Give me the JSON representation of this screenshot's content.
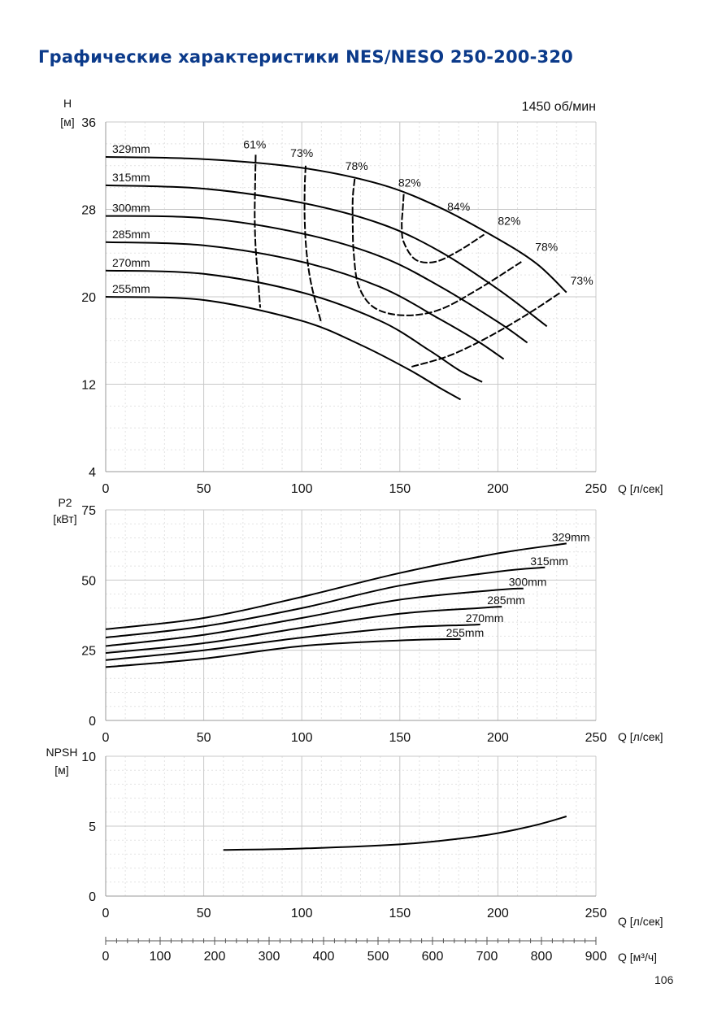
{
  "page": {
    "title": "Графические характеристики NES/NESO 250-200-320",
    "page_number": "106"
  },
  "colors": {
    "title": "#0b3a8a",
    "curve": "#000000",
    "grid": "#c8c8c8",
    "subgrid": "#e2e2e2"
  },
  "chart_data": [
    {
      "type": "line",
      "id": "head",
      "ylabel": [
        "H",
        "[м]"
      ],
      "speed_label": "1450 об/мин",
      "xlabel": "Q [л/сек]",
      "xlim": [
        0,
        250
      ],
      "ylim": [
        4,
        36
      ],
      "x_ticks": [
        0,
        50,
        100,
        150,
        200,
        250
      ],
      "y_ticks": [
        4,
        12,
        20,
        28,
        36
      ],
      "series": [
        {
          "name": "329mm",
          "points": [
            [
              0,
              32.8
            ],
            [
              50,
              32.6
            ],
            [
              100,
              31.8
            ],
            [
              140,
              30.3
            ],
            [
              170,
              28.2
            ],
            [
              200,
              25.3
            ],
            [
              220,
              23.0
            ],
            [
              235,
              20.4
            ]
          ]
        },
        {
          "name": "315mm",
          "points": [
            [
              0,
              30.2
            ],
            [
              50,
              29.9
            ],
            [
              100,
              28.6
            ],
            [
              140,
              26.7
            ],
            [
              170,
              24.2
            ],
            [
              200,
              20.7
            ],
            [
              225,
              17.3
            ]
          ]
        },
        {
          "name": "300mm",
          "points": [
            [
              0,
              27.4
            ],
            [
              50,
              27.2
            ],
            [
              100,
              25.8
            ],
            [
              140,
              23.7
            ],
            [
              170,
              21.0
            ],
            [
              200,
              17.7
            ],
            [
              215,
              15.8
            ]
          ]
        },
        {
          "name": "285mm",
          "points": [
            [
              0,
              25.0
            ],
            [
              50,
              24.7
            ],
            [
              100,
              23.2
            ],
            [
              140,
              20.9
            ],
            [
              170,
              18.0
            ],
            [
              190,
              15.9
            ],
            [
              203,
              14.3
            ]
          ]
        },
        {
          "name": "270mm",
          "points": [
            [
              0,
              22.4
            ],
            [
              50,
              22.1
            ],
            [
              100,
              20.4
            ],
            [
              140,
              17.8
            ],
            [
              165,
              15.1
            ],
            [
              180,
              13.3
            ],
            [
              192,
              12.2
            ]
          ]
        },
        {
          "name": "255mm",
          "points": [
            [
              0,
              20.0
            ],
            [
              50,
              19.7
            ],
            [
              100,
              17.8
            ],
            [
              130,
              15.6
            ],
            [
              155,
              13.3
            ],
            [
              170,
              11.7
            ],
            [
              181,
              10.6
            ]
          ]
        }
      ],
      "efficiency_curves": [
        {
          "name": "61%",
          "points": [
            [
              76.5,
              33.0
            ],
            [
              76.2,
              30.2
            ],
            [
              76.0,
              27.4
            ],
            [
              76.4,
              24.7
            ],
            [
              77.5,
              22.1
            ],
            [
              78.8,
              19.0
            ]
          ]
        },
        {
          "name": "73%",
          "points": [
            [
              102,
              32.0
            ],
            [
              101.5,
              30.0
            ],
            [
              101.5,
              27.0
            ],
            [
              102.5,
              24.0
            ],
            [
              105,
              21.0
            ],
            [
              110,
              17.6
            ]
          ]
        },
        {
          "name": "78%",
          "points": [
            [
              127,
              30.8
            ],
            [
              126,
              29.0
            ],
            [
              126,
              26.5
            ],
            [
              126.5,
              24.0
            ],
            [
              129,
              21.0
            ],
            [
              137,
              19.0
            ],
            [
              152,
              18.3
            ],
            [
              170,
              18.8
            ],
            [
              190,
              20.7
            ],
            [
              212,
              23.2
            ]
          ]
        },
        {
          "name": "82%",
          "points": [
            [
              152,
              29.4
            ],
            [
              151.5,
              28.0
            ],
            [
              151,
              26.5
            ],
            [
              152,
              25.0
            ],
            [
              158,
              23.4
            ],
            [
              168,
              23.2
            ],
            [
              180,
              24.2
            ],
            [
              193,
              25.7
            ]
          ]
        },
        {
          "name": "73%",
          "points": [
            [
              156,
              13.6
            ],
            [
              175,
              14.6
            ],
            [
              195,
              16.3
            ],
            [
              215,
              18.4
            ],
            [
              232,
              20.4
            ]
          ]
        }
      ],
      "efficiency_labels": [
        "61%",
        "73%",
        "78%",
        "82%",
        "84%",
        "82%",
        "78%",
        "73%"
      ]
    },
    {
      "type": "line",
      "id": "power",
      "ylabel": [
        "P2",
        "[кВт]"
      ],
      "xlabel": "Q [л/сек]",
      "xlim": [
        0,
        250
      ],
      "ylim": [
        0,
        75
      ],
      "x_ticks": [
        0,
        50,
        100,
        150,
        200,
        250
      ],
      "y_ticks": [
        0,
        25,
        50,
        75
      ],
      "series": [
        {
          "name": "329mm",
          "points": [
            [
              0,
              32.5
            ],
            [
              50,
              36.5
            ],
            [
              100,
              44.0
            ],
            [
              150,
              52.5
            ],
            [
              200,
              59.5
            ],
            [
              235,
              63.0
            ]
          ]
        },
        {
          "name": "315mm",
          "points": [
            [
              0,
              29.5
            ],
            [
              50,
              33.5
            ],
            [
              100,
              40.0
            ],
            [
              150,
              48.0
            ],
            [
              200,
              53.0
            ],
            [
              224,
              54.5
            ]
          ]
        },
        {
          "name": "300mm",
          "points": [
            [
              0,
              26.5
            ],
            [
              50,
              30.5
            ],
            [
              100,
              36.5
            ],
            [
              150,
              43.0
            ],
            [
              200,
              46.5
            ],
            [
              213,
              47.0
            ]
          ]
        },
        {
          "name": "285mm",
          "points": [
            [
              0,
              24.0
            ],
            [
              50,
              27.5
            ],
            [
              100,
              33.0
            ],
            [
              150,
              38.0
            ],
            [
              190,
              40.0
            ],
            [
              202,
              40.5
            ]
          ]
        },
        {
          "name": "270mm",
          "points": [
            [
              0,
              21.5
            ],
            [
              50,
              25.0
            ],
            [
              100,
              29.5
            ],
            [
              150,
              33.0
            ],
            [
              185,
              34.0
            ],
            [
              191,
              34.2
            ]
          ]
        },
        {
          "name": "255mm",
          "points": [
            [
              0,
              19.0
            ],
            [
              50,
              22.0
            ],
            [
              100,
              26.5
            ],
            [
              150,
              28.5
            ],
            [
              181,
              29.0
            ]
          ]
        }
      ]
    },
    {
      "type": "line",
      "id": "npsh",
      "ylabel": [
        "NPSH",
        "[м]"
      ],
      "xlabel": "Q [л/сек]",
      "xlim": [
        0,
        250
      ],
      "ylim": [
        0,
        10
      ],
      "x_ticks": [
        0,
        50,
        100,
        150,
        200,
        250
      ],
      "y_ticks": [
        0,
        5,
        10
      ],
      "series": [
        {
          "name": "",
          "points": [
            [
              60,
              3.3
            ],
            [
              100,
              3.4
            ],
            [
              150,
              3.7
            ],
            [
              180,
              4.1
            ],
            [
              200,
              4.5
            ],
            [
              220,
              5.1
            ],
            [
              235,
              5.7
            ]
          ]
        }
      ],
      "secondary_axis": {
        "xlabel": "Q [м³/ч]",
        "xlim": [
          0,
          900
        ],
        "ticks": [
          0,
          100,
          200,
          300,
          400,
          500,
          600,
          700,
          800,
          900
        ]
      }
    }
  ]
}
